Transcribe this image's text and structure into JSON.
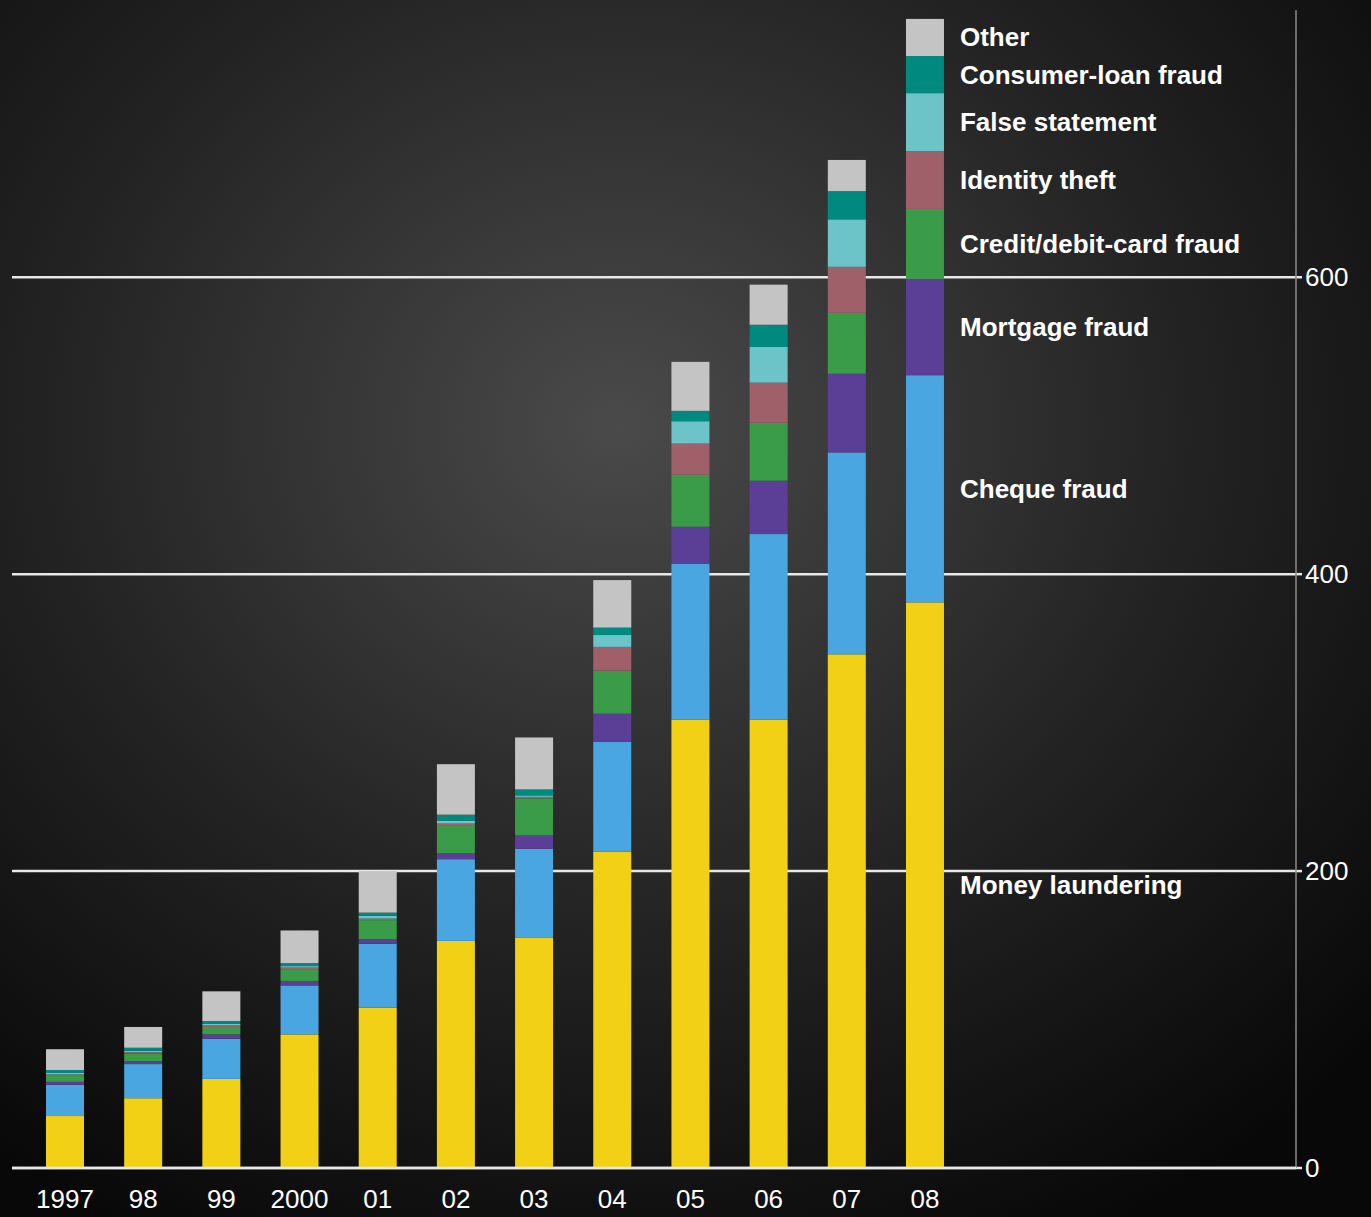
{
  "chart_data": {
    "type": "bar",
    "stacked": true,
    "grid": true,
    "legend": "right",
    "categories": [
      "1997",
      "98",
      "99",
      "2000",
      "01",
      "02",
      "03",
      "04",
      "05",
      "06",
      "07",
      "08"
    ],
    "ylim": [
      0,
      780
    ],
    "yticks": [
      0,
      200,
      400,
      600
    ],
    "series": [
      {
        "name": "Money laundering",
        "color": "#f2d016",
        "values": [
          35,
          47,
          60,
          90,
          108,
          153,
          155,
          213,
          302,
          302,
          346,
          381
        ]
      },
      {
        "name": "Cheque fraud",
        "color": "#4aa6e0",
        "values": [
          21,
          23,
          27,
          33,
          43,
          55,
          60,
          74,
          105,
          125,
          136,
          153
        ]
      },
      {
        "name": "Mortgage fraud",
        "color": "#5b3f96",
        "values": [
          2,
          2,
          3,
          3,
          3,
          4,
          9,
          19,
          25,
          36,
          53,
          65
        ]
      },
      {
        "name": "Credit/debit-card fraud",
        "color": "#3a9c48",
        "values": [
          4,
          5,
          5,
          8,
          13,
          19,
          25,
          29,
          35,
          39,
          41,
          47
        ]
      },
      {
        "name": "Identity theft",
        "color": "#a0606a",
        "values": [
          1,
          1,
          1,
          1,
          1,
          1,
          1,
          16,
          21,
          27,
          31,
          39
        ]
      },
      {
        "name": "False statement",
        "color": "#6cc3c8",
        "values": [
          1,
          1,
          1,
          1,
          2,
          2,
          1,
          8,
          15,
          24,
          32,
          39
        ]
      },
      {
        "name": "Consumer-loan fraud",
        "color": "#00897f",
        "values": [
          2,
          2,
          2,
          2,
          2,
          4,
          4,
          5,
          7,
          15,
          19,
          25
        ]
      },
      {
        "name": "Other",
        "color": "#c4c4c4",
        "values": [
          14,
          14,
          20,
          22,
          28,
          34,
          35,
          32,
          33,
          27,
          21,
          25
        ]
      }
    ]
  }
}
